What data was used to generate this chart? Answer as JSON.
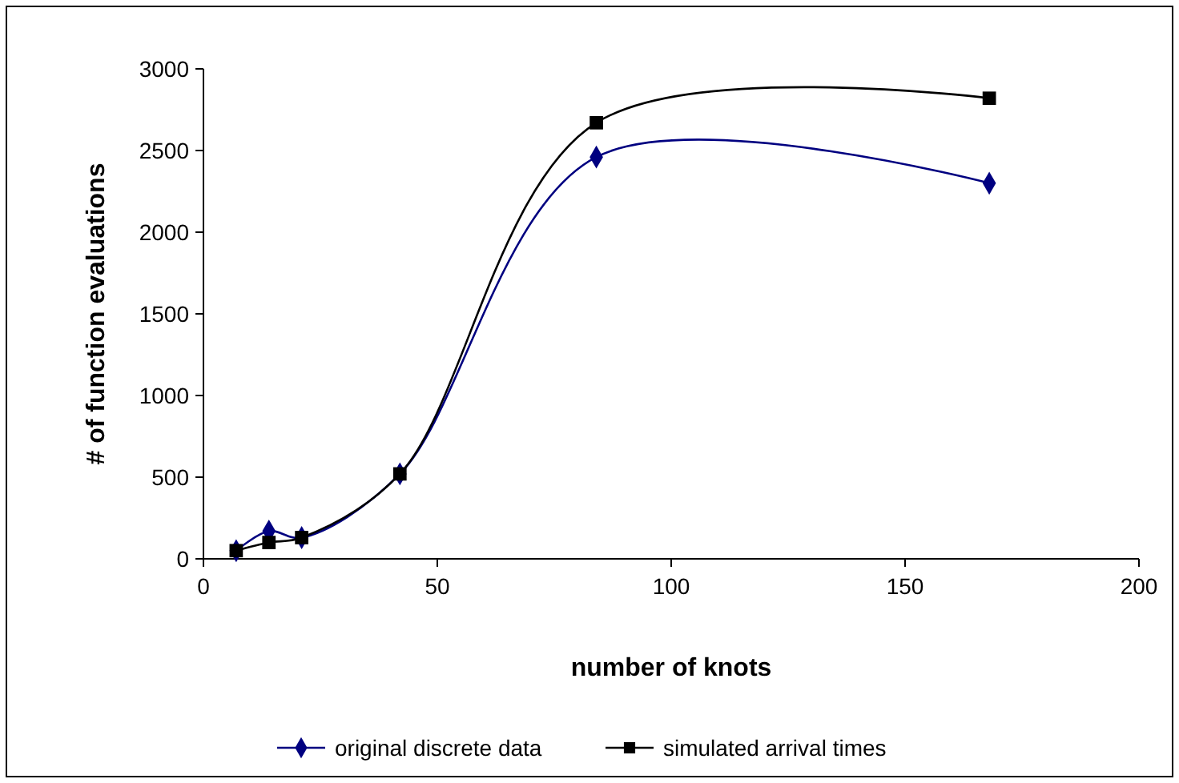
{
  "chart_data": {
    "type": "line",
    "xlabel": "number of knots",
    "ylabel": "# of function evaluations",
    "xlim": [
      0,
      200
    ],
    "xticks": [
      0,
      50,
      100,
      150,
      200
    ],
    "ylim": [
      0,
      3000
    ],
    "yticks": [
      0,
      500,
      1000,
      1500,
      2000,
      2500,
      3000
    ],
    "grid": false,
    "legend": "bottom",
    "series": [
      {
        "name": "original discrete data",
        "color": "#000080",
        "marker": "diamond",
        "x": [
          7,
          14,
          21,
          42,
          84,
          168
        ],
        "values": [
          50,
          170,
          130,
          520,
          2460,
          2300
        ]
      },
      {
        "name": "simulated arrival times",
        "color": "#000000",
        "marker": "square",
        "x": [
          7,
          14,
          21,
          42,
          84,
          168
        ],
        "values": [
          50,
          100,
          130,
          520,
          2670,
          2820
        ]
      }
    ]
  }
}
